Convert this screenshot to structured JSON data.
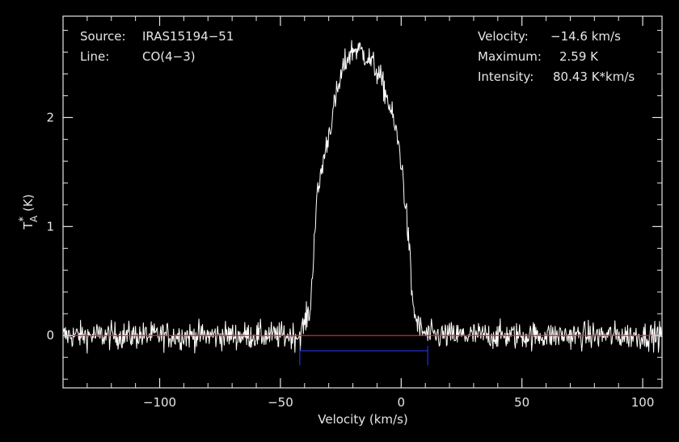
{
  "chart_data": {
    "type": "line",
    "xlabel": "Velocity (km/s)",
    "ylabel_main": "T",
    "ylabel_sup": "*",
    "ylabel_sub": "A",
    "ylabel_unit": "(K)",
    "xlim": [
      -140,
      108
    ],
    "ylim": [
      -0.48,
      2.93
    ],
    "x_ticks": [
      -100,
      -50,
      0,
      50,
      100
    ],
    "x_tick_labels": [
      "−100",
      "−50",
      "0",
      "50",
      "100"
    ],
    "y_ticks": [
      0,
      1,
      2
    ],
    "y_tick_labels": [
      "0",
      "1",
      "2"
    ],
    "grid": false,
    "info_left": [
      {
        "key": "Source:",
        "value": "IRAS15194−51"
      },
      {
        "key": "Line:",
        "value": "CO(4−3)"
      }
    ],
    "info_right": [
      {
        "key": "Velocity:",
        "value": "−14.6 km/s"
      },
      {
        "key": "Maximum:",
        "value": "2.59 K"
      },
      {
        "key": "Intensity:",
        "value": "80.43 K*km/s"
      }
    ],
    "baseline": {
      "y": 0,
      "color": "#cc2a2a"
    },
    "window": {
      "x_start": -42,
      "x_end": 11,
      "y": -0.14,
      "color": "#1f2fd0"
    },
    "series": [
      {
        "color": "#ffffff",
        "noise_amplitude": 0.09,
        "x": [
          -140,
          -42,
          -37.5,
          -36,
          -35,
          -33,
          -30,
          -27,
          -24,
          -22,
          -20,
          -18,
          -15,
          -12,
          -9,
          -6,
          -3,
          -1,
          0.5,
          2,
          3.5,
          4.5,
          6,
          8,
          11,
          108
        ],
        "values": [
          0,
          0,
          0.25,
          0.9,
          1.22,
          1.52,
          1.85,
          2.18,
          2.45,
          2.56,
          2.62,
          2.63,
          2.58,
          2.5,
          2.38,
          2.2,
          1.95,
          1.75,
          1.5,
          1.15,
          0.75,
          0.35,
          0.15,
          0.05,
          0,
          0
        ]
      }
    ]
  }
}
